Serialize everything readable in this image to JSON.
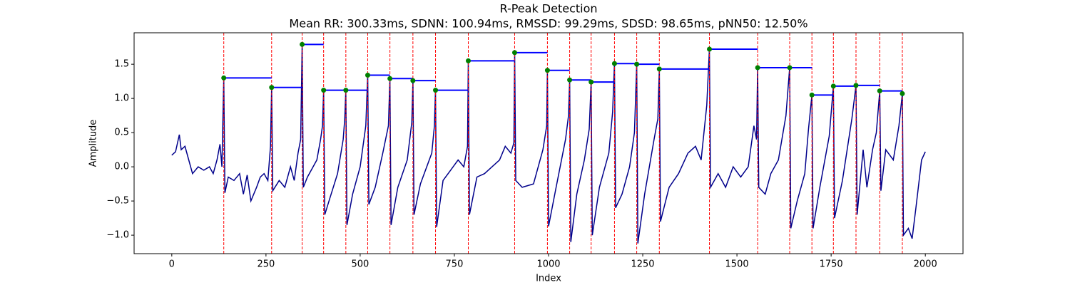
{
  "chart_data": {
    "type": "line",
    "title": "R-Peak Detection",
    "subtitle": "Mean RR: 300.33ms, SDNN: 100.94ms, RMSSD: 99.29ms, SDSD: 98.65ms, pNN50: 12.50%",
    "x_label": "Index",
    "y_label": "Amplitude",
    "xlim": [
      -100,
      2100
    ],
    "ylim": [
      -1.27,
      1.96
    ],
    "xticks": [
      0,
      250,
      500,
      750,
      1000,
      1250,
      1500,
      1750,
      2000
    ],
    "yticks": [
      {
        "value": -1,
        "label": "−1.0"
      },
      {
        "value": -0.5,
        "label": "−0.5"
      },
      {
        "value": 0,
        "label": "0.0"
      },
      {
        "value": 0.5,
        "label": "0.5"
      },
      {
        "value": 1,
        "label": "1.0"
      },
      {
        "value": 1.5,
        "label": "1.5"
      }
    ],
    "color": "#00008b",
    "x": [
      0,
      10,
      20,
      25,
      35,
      45,
      55,
      70,
      85,
      100,
      110,
      120,
      128,
      133,
      138,
      141,
      150,
      165,
      180,
      190,
      200,
      210,
      225,
      235,
      245,
      255,
      262,
      265,
      268,
      285,
      300,
      315,
      325,
      335,
      342,
      346,
      349,
      360,
      375,
      385,
      395,
      400,
      403,
      406,
      420,
      440,
      455,
      459,
      462,
      465,
      480,
      500,
      515,
      520,
      523,
      540,
      560,
      575,
      579,
      582,
      600,
      625,
      637,
      640,
      643,
      660,
      690,
      697,
      700,
      703,
      720,
      740,
      760,
      775,
      785,
      787,
      790,
      810,
      830,
      850,
      870,
      885,
      900,
      908,
      910,
      913,
      930,
      960,
      985,
      995,
      997,
      1000,
      1020,
      1045,
      1053,
      1056,
      1059,
      1075,
      1095,
      1108,
      1113,
      1116,
      1135,
      1160,
      1170,
      1175,
      1178,
      1195,
      1215,
      1228,
      1234,
      1237,
      1255,
      1280,
      1290,
      1294,
      1297,
      1320,
      1345,
      1370,
      1390,
      1405,
      1420,
      1427,
      1430,
      1450,
      1470,
      1490,
      1510,
      1530,
      1545,
      1552,
      1555,
      1558,
      1575,
      1590,
      1610,
      1630,
      1640,
      1643,
      1660,
      1680,
      1690,
      1699,
      1702,
      1720,
      1745,
      1756,
      1759,
      1780,
      1805,
      1816,
      1819,
      1835,
      1845,
      1860,
      1870,
      1879,
      1882,
      1895,
      1915,
      1930,
      1939,
      1942,
      1955,
      1965,
      1975,
      1990,
      2000
    ],
    "values": [
      0.17,
      0.22,
      0.47,
      0.25,
      0.3,
      0.1,
      -0.1,
      0.0,
      -0.05,
      0.0,
      -0.1,
      0.1,
      0.33,
      0.0,
      1.3,
      -0.38,
      -0.15,
      -0.2,
      -0.1,
      -0.4,
      -0.12,
      -0.5,
      -0.3,
      -0.15,
      -0.1,
      -0.2,
      0.3,
      1.16,
      -0.35,
      -0.2,
      -0.3,
      0.0,
      -0.2,
      0.2,
      0.4,
      1.79,
      -0.3,
      -0.15,
      0.0,
      0.1,
      0.4,
      0.6,
      1.12,
      -0.7,
      -0.45,
      -0.1,
      0.4,
      0.7,
      1.12,
      -0.85,
      -0.4,
      0.0,
      0.6,
      1.34,
      -0.55,
      -0.3,
      0.2,
      0.6,
      1.29,
      -0.85,
      -0.3,
      0.1,
      0.65,
      1.26,
      -0.7,
      -0.25,
      0.2,
      0.6,
      1.12,
      -0.88,
      -0.2,
      -0.05,
      0.1,
      0.0,
      0.3,
      1.55,
      -0.7,
      -0.15,
      -0.1,
      0.0,
      0.1,
      0.3,
      0.2,
      0.35,
      1.67,
      -0.2,
      -0.3,
      -0.25,
      0.25,
      0.6,
      1.41,
      -0.87,
      -0.3,
      0.4,
      0.75,
      1.27,
      -1.1,
      -0.4,
      0.1,
      0.55,
      1.24,
      -1.0,
      -0.3,
      0.2,
      0.8,
      1.51,
      -0.6,
      -0.4,
      0.0,
      0.5,
      1.5,
      -1.12,
      -0.4,
      0.4,
      0.7,
      1.43,
      -0.8,
      -0.3,
      -0.1,
      0.2,
      0.3,
      0.1,
      0.9,
      1.72,
      -0.3,
      -0.1,
      -0.3,
      0.0,
      -0.15,
      0.0,
      0.6,
      0.4,
      1.45,
      -0.3,
      -0.4,
      -0.1,
      0.1,
      0.75,
      1.45,
      -0.9,
      -0.5,
      -0.1,
      0.55,
      1.05,
      -0.9,
      -0.3,
      0.45,
      1.18,
      -0.75,
      -0.2,
      0.7,
      1.19,
      -0.7,
      0.25,
      -0.3,
      0.25,
      0.5,
      1.11,
      -0.35,
      0.25,
      0.1,
      0.6,
      1.07,
      -1.0,
      -0.9,
      -1.05,
      -0.6,
      0.1,
      0.22
    ],
    "peaks": {
      "color": "#008000",
      "line_color": "#ff0000",
      "interval_color": "#0000ff",
      "x": [
        138,
        265,
        346,
        403,
        462,
        520,
        579,
        640,
        700,
        787,
        910,
        997,
        1056,
        1113,
        1175,
        1234,
        1294,
        1427,
        1555,
        1640,
        1699,
        1756,
        1816,
        1879,
        1939
      ],
      "values": [
        1.3,
        1.16,
        1.79,
        1.12,
        1.12,
        1.34,
        1.29,
        1.26,
        1.12,
        1.55,
        1.67,
        1.41,
        1.27,
        1.24,
        1.51,
        1.5,
        1.43,
        1.72,
        1.45,
        1.45,
        1.05,
        1.18,
        1.19,
        1.11,
        1.07
      ]
    }
  }
}
